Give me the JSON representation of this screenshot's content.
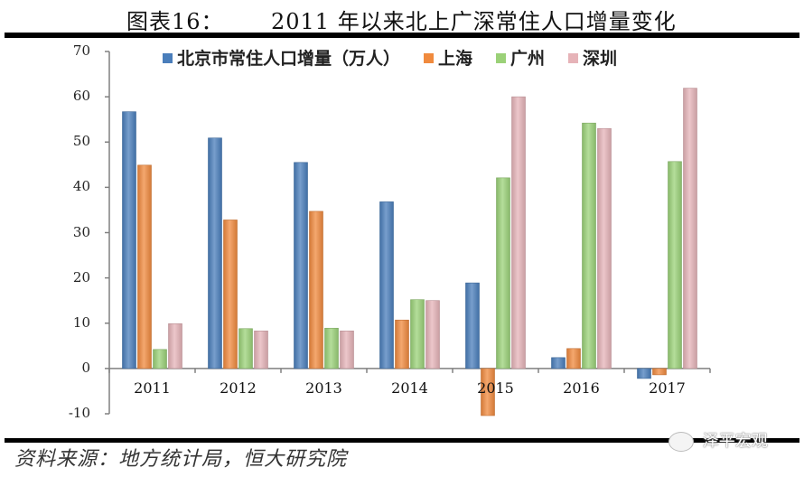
{
  "header": {
    "figure_number": "图表16：",
    "title": "2011 年以来北上广深常住人口增量变化"
  },
  "footer": {
    "source": "资料来源：地方统计局，恒大研究院",
    "watermark": "泽平宏观"
  },
  "colors": {
    "beijing": "#4a7ebb",
    "shanghai": "#f08a3e",
    "guangzhou": "#9bd178",
    "shenzhen": "#e6b3b8",
    "axis": "#808080"
  },
  "chart_data": {
    "type": "bar",
    "title": "2011 年以来北上广深常住人口增量变化",
    "xlabel": "",
    "ylabel": "",
    "ylim": [
      -10,
      70
    ],
    "yticks": [
      70,
      60,
      50,
      40,
      30,
      20,
      10,
      0,
      -10
    ],
    "categories": [
      "2011",
      "2012",
      "2013",
      "2014",
      "2015",
      "2016",
      "2017"
    ],
    "legend_position": "top",
    "grid": false,
    "series": [
      {
        "name": "北京市常住人口增量（万人）",
        "values": [
          56.7,
          50.9,
          45.5,
          36.8,
          18.9,
          2.4,
          -2.2
        ]
      },
      {
        "name": "上海",
        "values": [
          44.9,
          32.8,
          34.7,
          10.7,
          -10.4,
          4.4,
          -1.4
        ]
      },
      {
        "name": "广州",
        "values": [
          4.2,
          8.8,
          8.9,
          15.2,
          42.1,
          54.2,
          45.7
        ]
      },
      {
        "name": "深圳",
        "values": [
          9.9,
          8.3,
          8.3,
          15.0,
          60.0,
          53.0,
          61.9
        ]
      }
    ]
  }
}
